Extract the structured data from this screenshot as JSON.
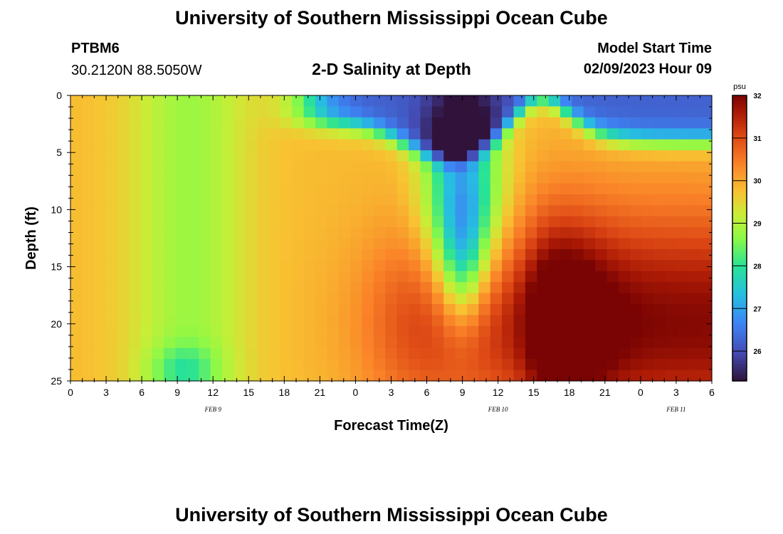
{
  "header": {
    "title_top": "University of Southern Mississippi Ocean Cube",
    "title_bottom": "University of Southern Mississippi Ocean Cube",
    "station_id": "PTBM6",
    "station_coords": "30.2120N  88.5050W",
    "subtitle": "2-D Salinity at Depth",
    "model_start_label": "Model Start Time",
    "model_start_value": "02/09/2023 Hour 09"
  },
  "colors": {
    "background": "#ffffff",
    "axis": "#000000"
  },
  "chart_data": {
    "type": "heatmap",
    "title": "2-D Salinity at Depth",
    "xlabel": "Forecast Time(Z)",
    "ylabel": "Depth (ft)",
    "x_ticks": [
      "0",
      "3",
      "6",
      "9",
      "12",
      "15",
      "18",
      "21",
      "0",
      "3",
      "6",
      "9",
      "12",
      "15",
      "18",
      "21",
      "0",
      "3",
      "6"
    ],
    "x_hours": [
      0,
      54
    ],
    "y_ticks": [
      "0",
      "5",
      "10",
      "15",
      "20",
      "25"
    ],
    "ylim": [
      0,
      25
    ],
    "date_labels": [
      {
        "text": "FEB 9",
        "hour": 12
      },
      {
        "text": "FEB 10",
        "hour": 36
      },
      {
        "text": "FEB 11",
        "hour": 51
      }
    ],
    "colorbar": {
      "unit": "psu",
      "ticks": [
        "32",
        "31",
        "30",
        "29",
        "28",
        "27",
        "26"
      ],
      "vmin": 25.3,
      "vmax": 32.0
    },
    "grid_size": {
      "time_steps": 55,
      "depth_levels": 26
    },
    "salinity_regions": [
      {
        "name": "Near-surface fresh layer hours 20-54",
        "range_psu": [
          25.5,
          28.5
        ]
      },
      {
        "name": "Fresh intrusion around hour 33",
        "depth_ft": 15,
        "range_psu": [
          26.0,
          29.0
        ]
      },
      {
        "name": "Saline core hours 24-35",
        "depth_ft": 20,
        "peak_psu": 31.5
      },
      {
        "name": "Saline core hours 38-54",
        "depth_ft": 20,
        "peak_psu": 32.0
      }
    ]
  }
}
